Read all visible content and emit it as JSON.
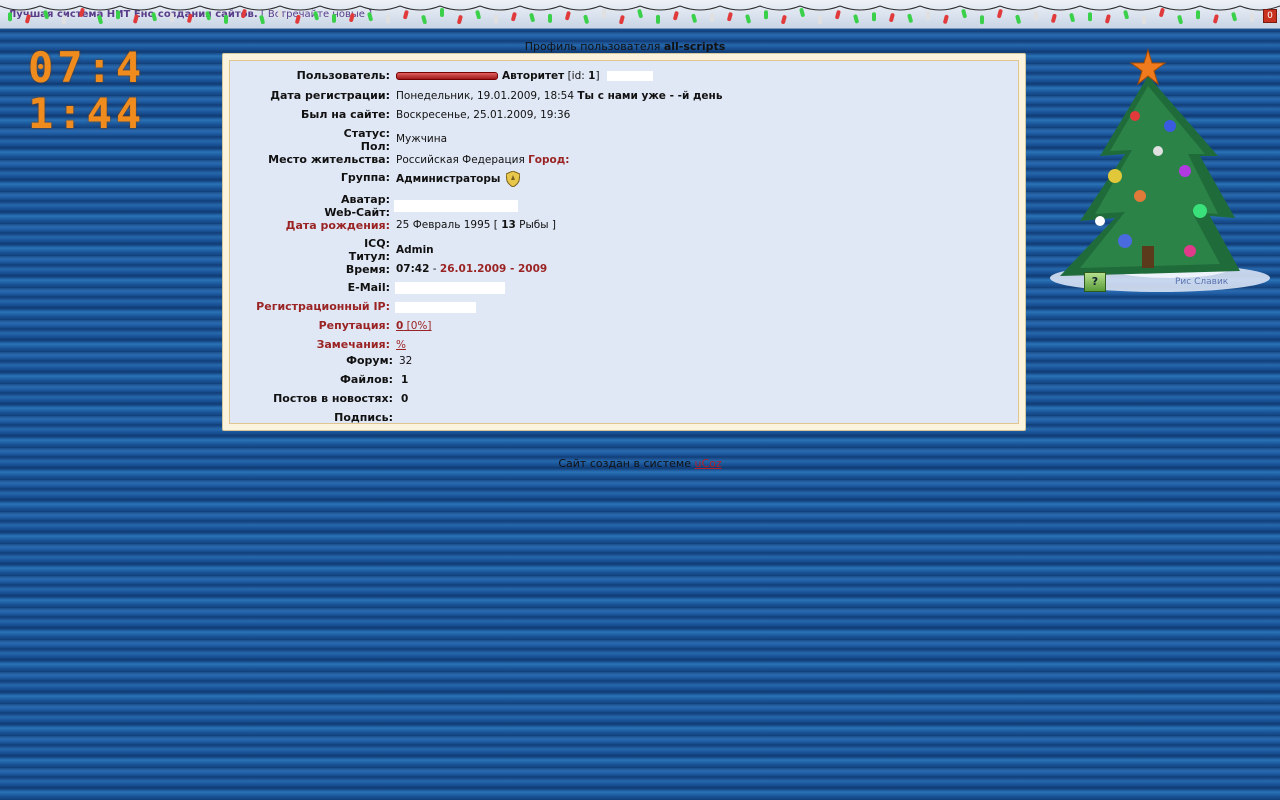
{
  "topbar": {
    "ticker_bold": "Лучшая система НИТ Ено создания сайтов.",
    "ticker_rest": " [ Встречайте новые ]",
    "close_label": "0"
  },
  "clock": {
    "time": "07:4 1:44"
  },
  "title": {
    "prefix": "Профиль пользователя ",
    "username": "all-scripts"
  },
  "profile": {
    "user_label": "Пользователь:",
    "user_rank": "Авторитет",
    "user_id_open": " [id: ",
    "user_id": "1",
    "user_id_close": "]",
    "regdate_label": "Дата регистрации:",
    "regdate_value": "Понедельник, 19.01.2009, 18:54 ",
    "regdate_extra": "Ты с нами уже - -й день",
    "lastvisit_label": "Был на сайте:",
    "lastvisit_value": "Воскресенье, 25.01.2009, 19:36",
    "status_label": "Статус:",
    "gender_label": "Пол:",
    "gender_value": "Мужчина",
    "location_label": "Место жительства:",
    "location_value": "Российская Федерация ",
    "city_label": "Город:",
    "group_label": "Группа:",
    "group_value": "Администраторы",
    "avatar_label": "Аватар:",
    "website_label": "Web-Сайт:",
    "birthday_label": "Дата рождения:",
    "birthday_value": "25 Февраль 1995 [ ",
    "birthday_age": "13",
    "birthday_sign": " Рыбы ]",
    "icq_label": "ICQ:",
    "rank_title_label": "Титул:",
    "rank_title_value": "Admin",
    "time_label": "Время:",
    "time_value": "07:42",
    "time_sep": " - ",
    "time_date": "26.01.2009 - 2009",
    "email_label": "E-Mail:",
    "regip_label": "Регистрационный IP:",
    "reputation_label": "Репутация:",
    "reputation_value": "0",
    "reputation_pct": " [0%]",
    "warnings_label": "Замечания:",
    "warnings_value": "%",
    "forum_label": "Форум:",
    "forum_value": "32",
    "files_label": "Файлов:",
    "files_value": "1",
    "news_label": "Постов в новостях:",
    "news_value": "0",
    "signature_label": "Подпись:"
  },
  "footer": {
    "text": "Сайт создан в системе ",
    "link": "uCoz"
  },
  "widget": {
    "caption": "Рис Славик",
    "help": "?"
  },
  "colors": {
    "accent_red": "#9a2424",
    "clock_orange": "#f08c1e",
    "panel_bg": "#e1e8f5"
  }
}
